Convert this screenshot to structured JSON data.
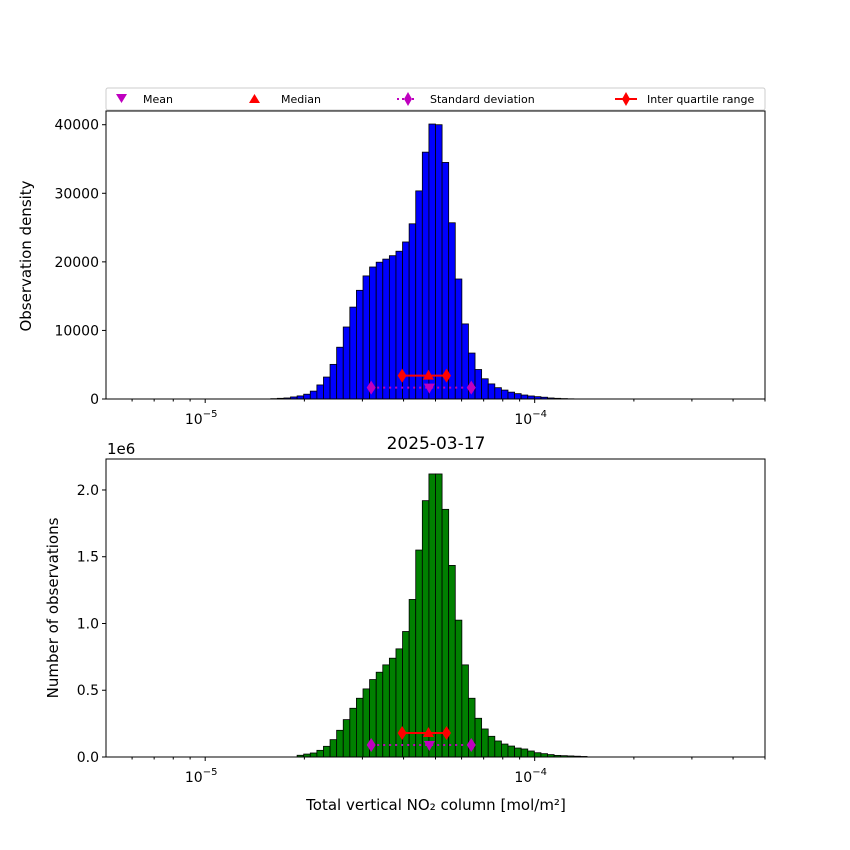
{
  "chart_data": [
    {
      "type": "bar",
      "panel": "top",
      "xscale": "log",
      "xlim": [
        5e-06,
        0.0005
      ],
      "bins": 100,
      "ylim": [
        0,
        42000
      ],
      "ylabel": "Observation density",
      "yticks": [
        0,
        10000,
        20000,
        30000,
        40000
      ],
      "ytick_labels": [
        "0",
        "10000",
        "20000",
        "30000",
        "40000"
      ],
      "bar_color": "#0000ff",
      "counts": [
        0,
        0,
        0,
        0,
        0,
        0,
        0,
        0,
        0,
        0,
        0,
        0,
        0,
        0,
        0,
        0,
        0,
        0,
        0,
        0,
        0,
        0,
        0,
        0,
        0,
        50,
        100,
        150,
        300,
        450,
        700,
        1150,
        2050,
        3200,
        5050,
        7550,
        10500,
        13400,
        15850,
        17950,
        19250,
        19950,
        20400,
        20900,
        21550,
        22900,
        25550,
        30350,
        36000,
        40100,
        40000,
        34500,
        25700,
        17500,
        10950,
        6700,
        4300,
        2950,
        2200,
        1650,
        1300,
        1000,
        780,
        580,
        440,
        340,
        260,
        150,
        100,
        60,
        30,
        0,
        0,
        0,
        0,
        0,
        0,
        0,
        0,
        0,
        0,
        0,
        0,
        0,
        0,
        0,
        0,
        0,
        0,
        0,
        0,
        0,
        0,
        0,
        0,
        0,
        0,
        0,
        0,
        0
      ],
      "stats": {
        "mean": 4.79e-05,
        "median": 4.76e-05,
        "std_low": 3.19e-05,
        "std_high": 6.42e-05,
        "q1": 3.96e-05,
        "q3": 5.4e-05,
        "iqr_marker_y": 3400,
        "std_marker_y": 1650
      }
    },
    {
      "type": "bar",
      "panel": "bottom",
      "title": "2025-03-17",
      "xscale": "log",
      "xlim": [
        5e-06,
        0.0005
      ],
      "bins": 100,
      "ylim": [
        0,
        2232000
      ],
      "ylabel": "Number of observations",
      "xlabel": "Total vertical NO₂ column [mol/m²]",
      "offset_label": "1e6",
      "yticks": [
        0,
        500000,
        1000000,
        1500000,
        2000000
      ],
      "ytick_labels": [
        "0.0",
        "0.5",
        "1.0",
        "1.5",
        "2.0"
      ],
      "bar_color": "#008000",
      "counts": [
        0,
        0,
        0,
        0,
        0,
        0,
        0,
        0,
        0,
        0,
        0,
        0,
        0,
        0,
        0,
        0,
        0,
        0,
        0,
        0,
        0,
        0,
        0,
        0,
        0,
        0,
        0,
        0,
        0,
        13000,
        22000,
        30000,
        50000,
        80000,
        130000,
        200000,
        280000,
        365000,
        440000,
        510000,
        580000,
        635000,
        690000,
        740000,
        810000,
        940000,
        1180000,
        1550000,
        1920000,
        2120000,
        2120000,
        1855000,
        1435000,
        1025000,
        690000,
        440000,
        290000,
        210000,
        155000,
        120000,
        97000,
        82000,
        67000,
        60000,
        45000,
        32000,
        25000,
        18000,
        12000,
        10000,
        8000,
        6000,
        4000,
        0,
        0,
        0,
        0,
        0,
        0,
        0,
        0,
        0,
        0,
        0,
        0,
        0,
        0,
        0,
        0,
        0,
        0,
        0,
        0,
        0,
        0,
        0,
        0,
        0,
        0,
        0
      ],
      "stats": {
        "mean": 4.79e-05,
        "median": 4.76e-05,
        "std_low": 3.19e-05,
        "std_high": 6.42e-05,
        "q1": 3.96e-05,
        "q3": 5.4e-05,
        "iqr_marker_y": 180000,
        "std_marker_y": 90000
      }
    }
  ],
  "xticks": [
    {
      "value": 1e-05,
      "base": "10",
      "exp": "−5"
    },
    {
      "value": 0.0001,
      "base": "10",
      "exp": "−4"
    }
  ],
  "legend": {
    "mean": "Mean",
    "median": "Median",
    "std": "Standard deviation",
    "iqr": "Inter quartile range"
  },
  "colors": {
    "mean": "#bf00bf",
    "median": "#ff0000",
    "std": "#bf00bf",
    "iqr": "#ff0000"
  }
}
